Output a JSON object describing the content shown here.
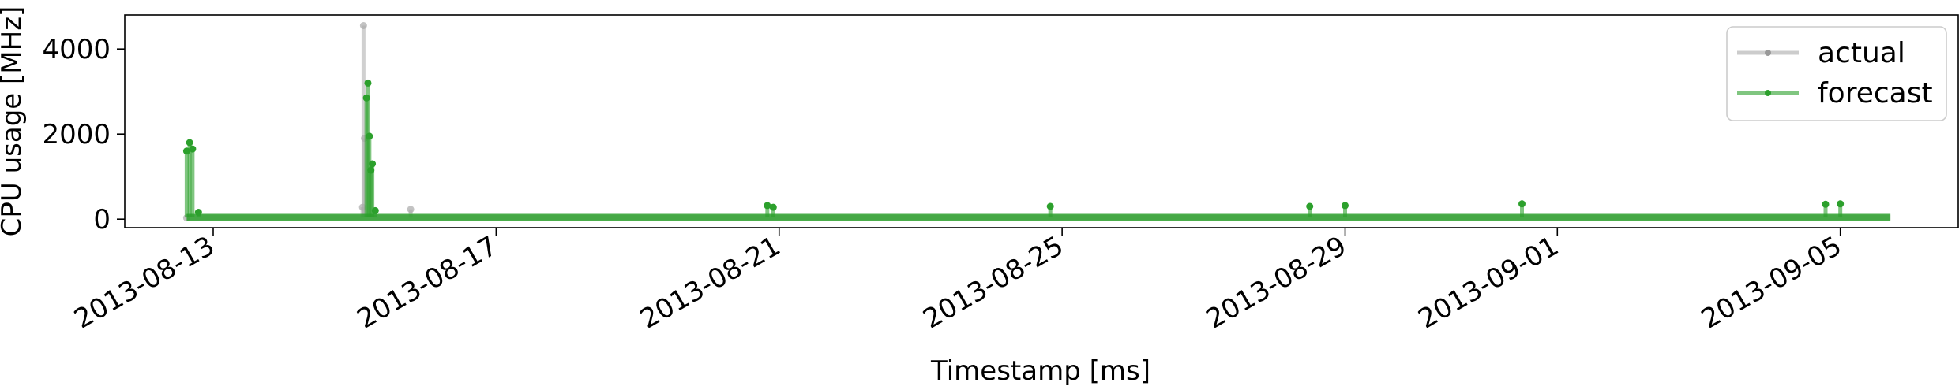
{
  "chart_data": {
    "type": "line",
    "xlabel": "Timestamp [ms]",
    "ylabel": "CPU usage [MHz]",
    "xlim": [
      "2013-08-11T18:00:00",
      "2013-09-06T16:00:00"
    ],
    "ylim": [
      -200,
      4800
    ],
    "y_ticks": [
      0,
      2000,
      4000
    ],
    "x_ticks": [
      "2013-08-13",
      "2013-08-17",
      "2013-08-21",
      "2013-08-25",
      "2013-08-29",
      "2013-09-01",
      "2013-09-05"
    ],
    "x_data_range": [
      "2013-08-12T15:00:00",
      "2013-09-05T17:00:00"
    ],
    "baseline_mhz": 40,
    "legend": {
      "position": "top-right"
    },
    "series": [
      {
        "name": "actual",
        "color": "#aaaaaa",
        "spikes": [
          {
            "x": "2013-08-12T15:00:00",
            "y": 30
          },
          {
            "x": "2013-08-15T02:40:00",
            "y": 280
          },
          {
            "x": "2013-08-15T03:00:00",
            "y": 4550
          },
          {
            "x": "2013-08-15T03:20:00",
            "y": 1900
          },
          {
            "x": "2013-08-15T19:00:00",
            "y": 230
          }
        ]
      },
      {
        "name": "forecast",
        "color": "#2ca02c",
        "spikes": [
          {
            "x": "2013-08-12T15:00:00",
            "y": 1600
          },
          {
            "x": "2013-08-12T16:00:00",
            "y": 1800
          },
          {
            "x": "2013-08-12T17:00:00",
            "y": 1650
          },
          {
            "x": "2013-08-12T19:00:00",
            "y": 160
          },
          {
            "x": "2013-08-15T04:00:00",
            "y": 2850
          },
          {
            "x": "2013-08-15T04:30:00",
            "y": 3200
          },
          {
            "x": "2013-08-15T05:00:00",
            "y": 1950
          },
          {
            "x": "2013-08-15T05:30:00",
            "y": 1150
          },
          {
            "x": "2013-08-15T06:00:00",
            "y": 1300
          },
          {
            "x": "2013-08-15T07:00:00",
            "y": 200
          },
          {
            "x": "2013-08-20T20:00:00",
            "y": 320
          },
          {
            "x": "2013-08-20T22:00:00",
            "y": 280
          },
          {
            "x": "2013-08-24T20:00:00",
            "y": 300
          },
          {
            "x": "2013-08-28T12:00:00",
            "y": 300
          },
          {
            "x": "2013-08-29T00:00:00",
            "y": 320
          },
          {
            "x": "2013-08-31T12:00:00",
            "y": 360
          },
          {
            "x": "2013-09-04T19:00:00",
            "y": 350
          },
          {
            "x": "2013-09-05T00:00:00",
            "y": 360
          }
        ]
      }
    ]
  }
}
